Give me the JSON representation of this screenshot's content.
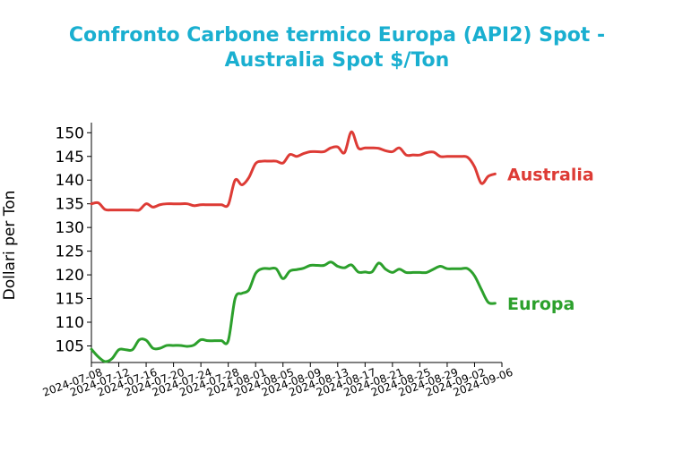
{
  "chart_data": {
    "type": "line",
    "title": "Confronto Carbone termico Europa (API2) Spot -\nAustralia Spot $/Ton",
    "xlabel": "",
    "ylabel": "Dollari per Ton",
    "x_ticks": [
      "2024-07-08",
      "2024-07-12",
      "2024-07-16",
      "2024-07-20",
      "2024-07-24",
      "2024-07-28",
      "2024-08-01",
      "2024-08-05",
      "2024-08-09",
      "2024-08-13",
      "2024-08-17",
      "2024-08-21",
      "2024-08-25",
      "2024-08-29",
      "2024-09-02",
      "2024-09-06"
    ],
    "y_ticks": [
      105,
      110,
      115,
      120,
      125,
      130,
      135,
      140,
      145,
      150
    ],
    "xlim": [
      "2024-07-08",
      "2024-09-06"
    ],
    "ylim": [
      101.5,
      151
    ],
    "grid": false,
    "series": [
      {
        "name": "Australia",
        "color": "#dd3b35",
        "x": [
          "2024-07-08",
          "2024-07-09",
          "2024-07-10",
          "2024-07-11",
          "2024-07-12",
          "2024-07-13",
          "2024-07-14",
          "2024-07-15",
          "2024-07-16",
          "2024-07-17",
          "2024-07-18",
          "2024-07-19",
          "2024-07-20",
          "2024-07-21",
          "2024-07-22",
          "2024-07-23",
          "2024-07-24",
          "2024-07-25",
          "2024-07-26",
          "2024-07-27",
          "2024-07-28",
          "2024-07-29",
          "2024-07-30",
          "2024-07-31",
          "2024-08-01",
          "2024-08-02",
          "2024-08-03",
          "2024-08-04",
          "2024-08-05",
          "2024-08-06",
          "2024-08-07",
          "2024-08-08",
          "2024-08-09",
          "2024-08-10",
          "2024-08-11",
          "2024-08-12",
          "2024-08-13",
          "2024-08-14",
          "2024-08-15",
          "2024-08-16",
          "2024-08-17",
          "2024-08-18",
          "2024-08-19",
          "2024-08-20",
          "2024-08-21",
          "2024-08-22",
          "2024-08-23",
          "2024-08-24",
          "2024-08-25",
          "2024-08-26",
          "2024-08-27",
          "2024-08-28",
          "2024-08-29",
          "2024-08-30",
          "2024-08-31",
          "2024-09-01",
          "2024-09-02",
          "2024-09-03",
          "2024-09-04",
          "2024-09-05"
        ],
        "values": [
          135.0,
          135.2,
          133.8,
          133.7,
          133.7,
          133.7,
          133.7,
          133.7,
          135.0,
          134.3,
          134.8,
          135.0,
          135.0,
          135.0,
          135.0,
          134.6,
          134.8,
          134.8,
          134.8,
          134.8,
          134.8,
          140.0,
          139.0,
          140.5,
          143.5,
          144.0,
          144.0,
          144.0,
          143.6,
          145.4,
          145.0,
          145.6,
          146.0,
          146.0,
          146.0,
          146.8,
          147.0,
          145.8,
          150.2,
          146.8,
          146.8,
          146.8,
          146.7,
          146.2,
          146.0,
          146.8,
          145.3,
          145.3,
          145.3,
          145.8,
          145.9,
          145.0,
          145.0,
          145.0,
          145.0,
          144.8,
          142.8,
          139.3,
          140.8,
          141.3
        ]
      },
      {
        "name": "Europa",
        "color": "#2ca02c",
        "x": [
          "2024-07-08",
          "2024-07-09",
          "2024-07-10",
          "2024-07-11",
          "2024-07-12",
          "2024-07-13",
          "2024-07-14",
          "2024-07-15",
          "2024-07-16",
          "2024-07-17",
          "2024-07-18",
          "2024-07-19",
          "2024-07-20",
          "2024-07-21",
          "2024-07-22",
          "2024-07-23",
          "2024-07-24",
          "2024-07-25",
          "2024-07-26",
          "2024-07-27",
          "2024-07-28",
          "2024-07-29",
          "2024-07-30",
          "2024-07-31",
          "2024-08-01",
          "2024-08-02",
          "2024-08-03",
          "2024-08-04",
          "2024-08-05",
          "2024-08-06",
          "2024-08-07",
          "2024-08-08",
          "2024-08-09",
          "2024-08-10",
          "2024-08-11",
          "2024-08-12",
          "2024-08-13",
          "2024-08-14",
          "2024-08-15",
          "2024-08-16",
          "2024-08-17",
          "2024-08-18",
          "2024-08-19",
          "2024-08-20",
          "2024-08-21",
          "2024-08-22",
          "2024-08-23",
          "2024-08-24",
          "2024-08-25",
          "2024-08-26",
          "2024-08-27",
          "2024-08-28",
          "2024-08-29",
          "2024-08-30",
          "2024-08-31",
          "2024-09-01",
          "2024-09-02",
          "2024-09-03",
          "2024-09-04",
          "2024-09-05"
        ],
        "values": [
          104.3,
          102.7,
          101.7,
          102.3,
          104.2,
          104.2,
          104.2,
          106.3,
          106.2,
          104.5,
          104.5,
          105.1,
          105.1,
          105.1,
          104.9,
          105.2,
          106.3,
          106.1,
          106.1,
          106.1,
          106.1,
          115.0,
          116.1,
          116.8,
          120.3,
          121.3,
          121.3,
          121.3,
          119.2,
          120.8,
          121.1,
          121.4,
          122.0,
          122.0,
          122.0,
          122.7,
          121.8,
          121.5,
          122.1,
          120.6,
          120.6,
          120.6,
          122.5,
          121.2,
          120.5,
          121.2,
          120.5,
          120.5,
          120.5,
          120.5,
          121.2,
          121.8,
          121.3,
          121.3,
          121.3,
          121.3,
          119.8,
          116.9,
          114.2,
          114.0
        ]
      }
    ]
  }
}
